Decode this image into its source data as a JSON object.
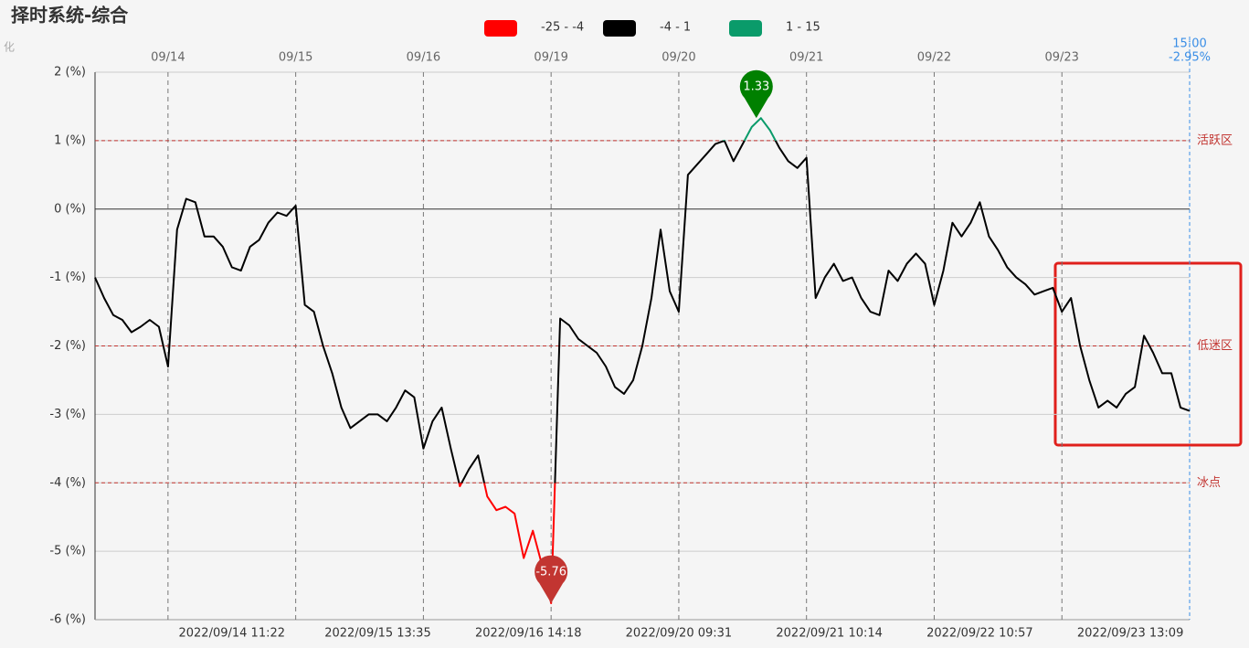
{
  "chart_data": {
    "type": "line",
    "title": "择时系统-综合",
    "subtitle": "化",
    "x": [
      0,
      2,
      4,
      6,
      8,
      10,
      12,
      14,
      16,
      18,
      20,
      22,
      24,
      26,
      28,
      30,
      32,
      34,
      36,
      38,
      40,
      42,
      44,
      46,
      48,
      50,
      52,
      54,
      56,
      58,
      60,
      62,
      64,
      66,
      68,
      70,
      72,
      74,
      76,
      78,
      80,
      82,
      84,
      86,
      88,
      90,
      92,
      94,
      96,
      98,
      100,
      102,
      104,
      106,
      108,
      110,
      112,
      114,
      116,
      118,
      120,
      122,
      124,
      126,
      128,
      130,
      132,
      134,
      136,
      138,
      140,
      142,
      144,
      146,
      148,
      150,
      152,
      154,
      156,
      158,
      160,
      162,
      164,
      166,
      168,
      170,
      172,
      174,
      176,
      178,
      180,
      182,
      184,
      186,
      188,
      190,
      192,
      194,
      196,
      198,
      200,
      202,
      204,
      206,
      208,
      210,
      212,
      214,
      216,
      218,
      220,
      222,
      224,
      226,
      228,
      230,
      232,
      234,
      236,
      238,
      240
    ],
    "series": [
      {
        "values": [
          -1.0,
          -1.3,
          -1.55,
          -1.62,
          -1.8,
          -1.72,
          -1.62,
          -1.72,
          -2.3,
          -0.3,
          0.15,
          0.1,
          -0.4,
          -0.4,
          -0.55,
          -0.85,
          -0.9,
          -0.55,
          -0.45,
          -0.2,
          -0.05,
          -0.1,
          0.05,
          -1.4,
          -1.5,
          -2.0,
          -2.4,
          -2.9,
          -3.2,
          -3.1,
          -3.0,
          -3.0,
          -3.1,
          -2.9,
          -2.65,
          -2.75,
          -3.5,
          -3.1,
          -2.9,
          -3.5,
          -4.05,
          -3.8,
          -3.6,
          -4.2,
          -4.4,
          -4.35,
          -4.45,
          -5.1,
          -4.7,
          -5.2,
          -5.76,
          -1.6,
          -1.7,
          -1.9,
          -2.0,
          -2.1,
          -2.3,
          -2.6,
          -2.7,
          -2.5,
          -2.0,
          -1.3,
          -0.3,
          -1.2,
          -1.5,
          0.5,
          0.65,
          0.8,
          0.95,
          1.0,
          0.7,
          0.95,
          1.2,
          1.33,
          1.15,
          0.9,
          0.7,
          0.6,
          0.75,
          -1.3,
          -1.0,
          -0.8,
          -1.05,
          -1.0,
          -1.3,
          -1.5,
          -1.55,
          -0.9,
          -1.05,
          -0.8,
          -0.65,
          -0.8,
          -1.4,
          -0.9,
          -0.2,
          -0.4,
          -0.2,
          0.1,
          -0.4,
          -0.6,
          -0.85,
          -1.0,
          -1.1,
          -1.25,
          -1.2,
          -1.15,
          -1.5,
          -1.3,
          -2.0,
          -2.5,
          -2.9,
          -2.8,
          -2.9,
          -2.7,
          -2.6,
          -1.85,
          -2.1,
          -2.4,
          -2.4,
          -2.9,
          -2.95
        ]
      }
    ],
    "pieces": [
      {
        "min": -25,
        "max": -4,
        "label": "-25 - -4",
        "color": "#ff0000"
      },
      {
        "min": -4,
        "max": 1,
        "label": "-4 - 1",
        "color": "#000000"
      },
      {
        "min": 1,
        "max": 15,
        "label": "1 - 15",
        "color": "#0a9b6a"
      }
    ],
    "xlim": [
      0,
      240
    ],
    "ylim": [
      -6,
      2
    ],
    "yticks": [
      {
        "value": 2,
        "label": "2 (%)"
      },
      {
        "value": 1,
        "label": "1 (%)"
      },
      {
        "value": 0,
        "label": "0 (%)"
      },
      {
        "value": -1,
        "label": "-1 (%)"
      },
      {
        "value": -2,
        "label": "-2 (%)"
      },
      {
        "value": -3,
        "label": "-3 (%)"
      },
      {
        "value": -4,
        "label": "-4 (%)"
      },
      {
        "value": -5,
        "label": "-5 (%)"
      },
      {
        "value": -6,
        "label": "-6 (%)"
      }
    ],
    "xticks": [
      {
        "value": 16,
        "label": "09/14"
      },
      {
        "value": 44,
        "label": "09/15"
      },
      {
        "value": 72,
        "label": "09/16"
      },
      {
        "value": 100,
        "label": "09/19"
      },
      {
        "value": 128,
        "label": "09/20"
      },
      {
        "value": 156,
        "label": "09/21"
      },
      {
        "value": 184,
        "label": "09/22"
      },
      {
        "value": 212,
        "label": "09/23"
      }
    ],
    "x_bottom_labels": [
      {
        "value": 30,
        "label": "2022/09/14 11:22"
      },
      {
        "value": 62,
        "label": "2022/09/15 13:35"
      },
      {
        "value": 95,
        "label": "2022/09/16 14:18"
      },
      {
        "value": 128,
        "label": "2022/09/20 09:31"
      },
      {
        "value": 161,
        "label": "2022/09/21 10:14"
      },
      {
        "value": 194,
        "label": "2022/09/22 10:57"
      },
      {
        "value": 227,
        "label": "2022/09/23 13:09"
      }
    ],
    "end_marker": {
      "x": 240,
      "time": "15:00",
      "value_label": "-2.95%",
      "color": "#3a8ee6"
    },
    "mark_lines": [
      {
        "value": 1,
        "label": "活跃区"
      },
      {
        "value": -2,
        "label": "低迷区"
      },
      {
        "value": -4,
        "label": "冰点"
      }
    ],
    "mark_line_color": "#c23531",
    "mark_points": [
      {
        "x": 145,
        "value": 1.33,
        "color": "#008000"
      },
      {
        "x": 100,
        "value": -5.76,
        "color": "#c23531"
      }
    ]
  }
}
